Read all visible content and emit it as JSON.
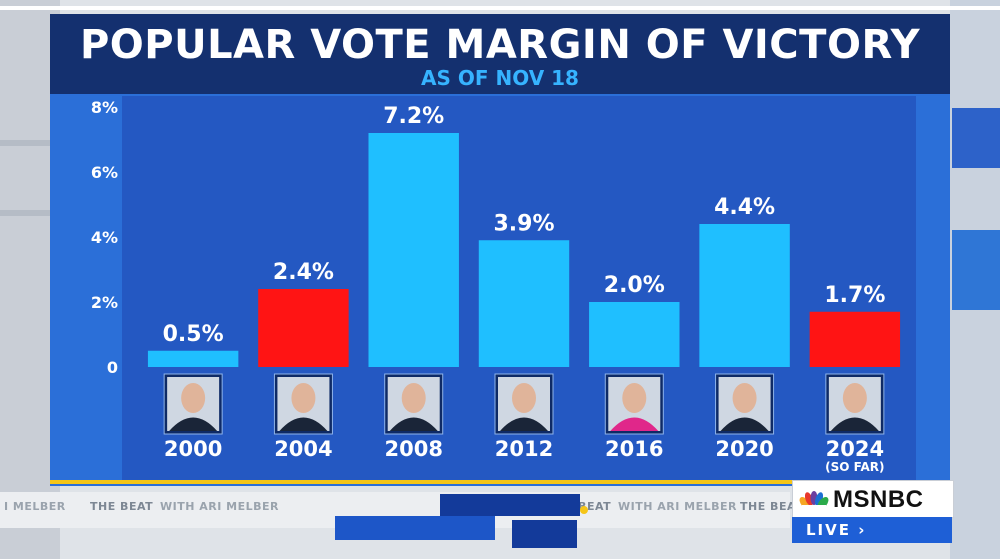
{
  "chart_data": {
    "type": "bar",
    "title": "POPULAR VOTE MARGIN OF VICTORY",
    "subtitle": "AS OF NOV 18",
    "categories": [
      "2000",
      "2004",
      "2008",
      "2012",
      "2016",
      "2020",
      "2024"
    ],
    "category_notes": [
      "",
      "",
      "",
      "",
      "",
      "",
      "(SO FAR)"
    ],
    "values": [
      0.5,
      2.4,
      7.2,
      3.9,
      2.0,
      4.4,
      1.7
    ],
    "value_labels": [
      "0.5%",
      "2.4%",
      "7.2%",
      "3.9%",
      "2.0%",
      "4.4%",
      "1.7%"
    ],
    "bar_colors": [
      "#1fbfff",
      "#ff1414",
      "#1fbfff",
      "#1fbfff",
      "#1fbfff",
      "#1fbfff",
      "#ff1414"
    ],
    "ylim": [
      0,
      8
    ],
    "yticks": [
      0,
      2,
      4,
      6,
      8
    ],
    "ytick_labels": [
      "0",
      "2%",
      "4%",
      "6%",
      "8%"
    ],
    "xlabel": "",
    "ylabel": "",
    "grid": false,
    "legend": "none"
  },
  "colors": {
    "party_blue": "#1fbfff",
    "party_red": "#ff1414",
    "title_band": "#14306f",
    "accent": "#36b3ff"
  },
  "broadcast": {
    "network": "MSNBC",
    "live_label": "LIVE",
    "ticker_show": "THE BEAT",
    "ticker_host": "WITH ARI MELBER",
    "ticker_fragment": "I MELBER"
  }
}
